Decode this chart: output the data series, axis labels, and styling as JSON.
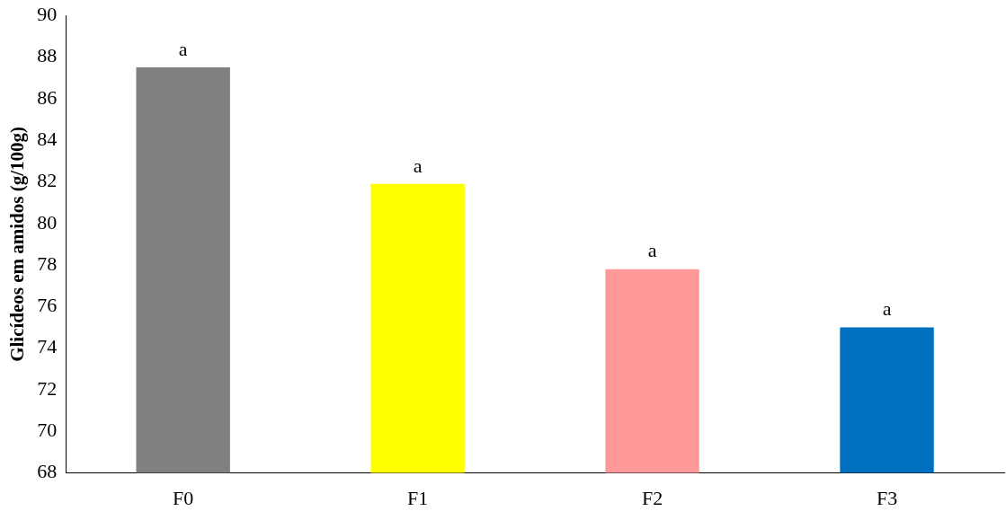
{
  "chart_data": {
    "type": "bar",
    "ylabel": "Glicídeos em amidos (g/100g)",
    "categories": [
      "F0",
      "F1",
      "F2",
      "F3"
    ],
    "values": [
      87.5,
      81.9,
      77.8,
      75.0
    ],
    "colors": [
      "#808080",
      "#ffff00",
      "#ff9999",
      "#0070c0"
    ],
    "ylim": [
      68,
      90
    ],
    "yticks": [
      68,
      70,
      72,
      74,
      76,
      78,
      80,
      82,
      84,
      86,
      88,
      90
    ],
    "grid": false,
    "legend": false,
    "annotations": [
      {
        "text": "a",
        "x": "F0",
        "y": 87.5
      },
      {
        "text": "a",
        "x": "F1",
        "y": 81.9
      },
      {
        "text": "a",
        "x": "F2",
        "y": 77.8
      },
      {
        "text": "a",
        "x": "F3",
        "y": 75.0
      }
    ]
  }
}
